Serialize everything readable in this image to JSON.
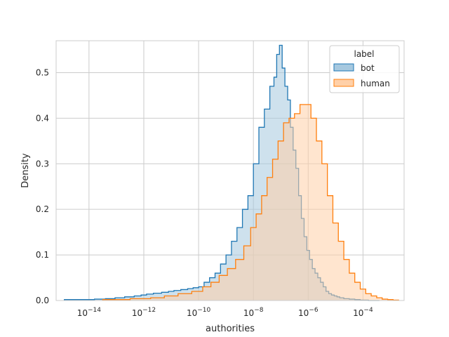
{
  "chart_data": {
    "type": "histogram",
    "x_scale": "log",
    "xlabel": "authorities",
    "ylabel": "Density",
    "xlim_log10": [
      -15.2,
      -2.5
    ],
    "ylim": [
      0,
      0.57
    ],
    "x_ticks": [
      {
        "exp": -14,
        "label": "10",
        "sup": "−14"
      },
      {
        "exp": -12,
        "label": "10",
        "sup": "−12"
      },
      {
        "exp": -10,
        "label": "10",
        "sup": "−10"
      },
      {
        "exp": -8,
        "label": "10",
        "sup": "−8"
      },
      {
        "exp": -6,
        "label": "10",
        "sup": "−6"
      },
      {
        "exp": -4,
        "label": "10",
        "sup": "−4"
      }
    ],
    "y_ticks": [
      0.0,
      0.1,
      0.2,
      0.3,
      0.4,
      0.5
    ],
    "y_tick_labels": [
      "0.0",
      "0.1",
      "0.2",
      "0.3",
      "0.4",
      "0.5"
    ],
    "grid": true,
    "legend": {
      "title": "label",
      "position": "top-right",
      "entries": [
        "bot",
        "human"
      ]
    },
    "series": [
      {
        "name": "bot",
        "color": "#1f77b4",
        "fill": "#a6c8df",
        "x_log10": [
          -14.6,
          -14.0,
          -13.6,
          -13.2,
          -12.9,
          -12.5,
          -12.2,
          -12.0,
          -11.8,
          -11.5,
          -11.2,
          -11.0,
          -10.8,
          -10.5,
          -10.3,
          -10.1,
          -9.9,
          -9.7,
          -9.5,
          -9.3,
          -9.1,
          -8.9,
          -8.7,
          -8.5,
          -8.3,
          -8.1,
          -7.9,
          -7.7,
          -7.5,
          -7.3,
          -7.2,
          -7.1,
          -7.0,
          -6.9,
          -6.8,
          -6.7,
          -6.6,
          -6.5,
          -6.4,
          -6.3,
          -6.2,
          -6.1,
          -6.0,
          -5.9,
          -5.8,
          -5.7,
          -5.6,
          -5.5,
          -5.4,
          -5.3,
          -5.2,
          -5.1,
          -5.0,
          -4.9,
          -4.8,
          -4.6,
          -4.4,
          -4.2,
          -4.0,
          -3.6
        ],
        "density": [
          0.002,
          0.002,
          0.003,
          0.004,
          0.006,
          0.008,
          0.01,
          0.012,
          0.014,
          0.016,
          0.018,
          0.02,
          0.022,
          0.024,
          0.026,
          0.028,
          0.03,
          0.04,
          0.05,
          0.06,
          0.08,
          0.1,
          0.13,
          0.16,
          0.2,
          0.23,
          0.3,
          0.38,
          0.42,
          0.47,
          0.49,
          0.54,
          0.56,
          0.51,
          0.47,
          0.44,
          0.38,
          0.33,
          0.29,
          0.23,
          0.18,
          0.14,
          0.11,
          0.09,
          0.07,
          0.06,
          0.05,
          0.04,
          0.03,
          0.02,
          0.015,
          0.012,
          0.01,
          0.008,
          0.006,
          0.004,
          0.003,
          0.002,
          0.001,
          0.0
        ]
      },
      {
        "name": "human",
        "color": "#ff7f0e",
        "fill": "#ffd0a8",
        "x_log10": [
          -13.0,
          -12.0,
          -11.5,
          -11.0,
          -10.5,
          -10.0,
          -9.7,
          -9.4,
          -9.1,
          -8.8,
          -8.5,
          -8.2,
          -8.0,
          -7.8,
          -7.6,
          -7.4,
          -7.2,
          -7.0,
          -6.8,
          -6.6,
          -6.4,
          -6.2,
          -6.0,
          -5.8,
          -5.6,
          -5.4,
          -5.2,
          -5.0,
          -4.8,
          -4.6,
          -4.4,
          -4.2,
          -4.0,
          -3.8,
          -3.6,
          -3.4,
          -3.2,
          -3.0,
          -2.8
        ],
        "density": [
          0.002,
          0.004,
          0.006,
          0.01,
          0.015,
          0.02,
          0.03,
          0.04,
          0.055,
          0.07,
          0.09,
          0.12,
          0.16,
          0.19,
          0.23,
          0.27,
          0.31,
          0.35,
          0.39,
          0.4,
          0.41,
          0.43,
          0.43,
          0.4,
          0.35,
          0.3,
          0.23,
          0.17,
          0.13,
          0.09,
          0.06,
          0.04,
          0.025,
          0.015,
          0.01,
          0.006,
          0.003,
          0.002,
          0.001
        ]
      }
    ]
  }
}
